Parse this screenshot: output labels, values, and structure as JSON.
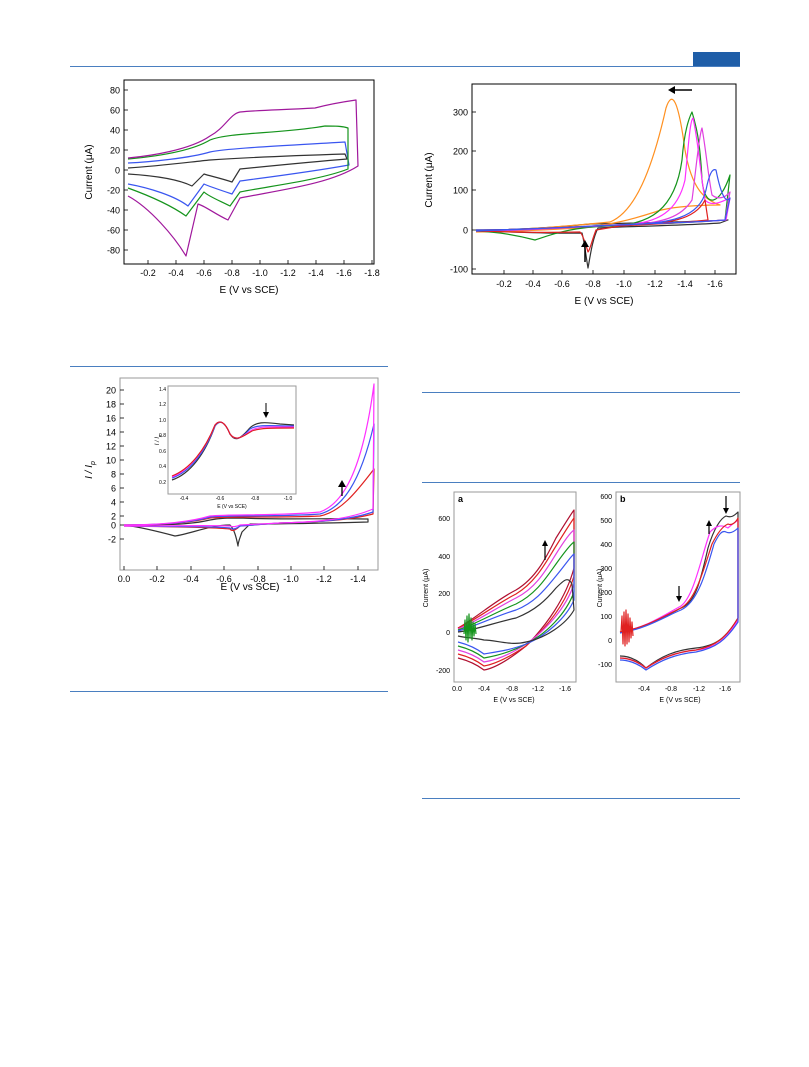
{
  "colors": {
    "rule": "#4a7fc0",
    "header_tab": "#1f5ea8",
    "black": "#333333",
    "blue": "#3a56f0",
    "green": "#15941c",
    "purple": "#a0189c",
    "red": "#e02020",
    "pink": "#e040e0",
    "magenta": "#ff30ff",
    "orange": "#ff9020",
    "darkred": "#b01030"
  },
  "fig1": {
    "xlabel": "E (V vs SCE)",
    "ylabel": "Current (μA)",
    "xticks": [
      "-0.2",
      "-0.4",
      "-0.6",
      "-0.8",
      "-1.0",
      "-1.2",
      "-1.4",
      "-1.6",
      "-1.8"
    ],
    "yticks": [
      "80",
      "60",
      "40",
      "20",
      "0",
      "-20",
      "-40",
      "-60",
      "-80"
    ]
  },
  "fig2": {
    "xlabel": "E (V vs SCE)",
    "ylabel": "Current (μA)",
    "xticks": [
      "-0.2",
      "-0.4",
      "-0.6",
      "-0.8",
      "-1.0",
      "-1.2",
      "-1.4",
      "-1.6"
    ],
    "yticks": [
      "300",
      "200",
      "100",
      "0",
      "-100"
    ]
  },
  "fig3": {
    "xlabel": "E (V vs SCE)",
    "ylabel": "I / I",
    "ylabel_sub": "p",
    "xticks": [
      "0.0",
      "-0.2",
      "-0.4",
      "-0.6",
      "-0.8",
      "-1.0",
      "-1.2",
      "-1.4"
    ],
    "yticks": [
      "20",
      "18",
      "16",
      "14",
      "12",
      "10",
      "8",
      "6",
      "4",
      "2",
      "0",
      "-2"
    ],
    "inset": {
      "xlabel": "E (V vs SCE)",
      "ylabel": "I / I",
      "ylabel_sub": "p",
      "xticks": [
        "-0.4",
        "-0.6",
        "-0.8",
        "-1.0"
      ],
      "yticks": [
        "1.4",
        "1.2",
        "1.0",
        "0.8",
        "0.6",
        "0.4",
        "0.2"
      ]
    }
  },
  "fig4": {
    "panel_a": {
      "letter": "a",
      "xlabel": "E (V vs SCE)",
      "ylabel": "Current (μA)",
      "xticks": [
        "0.0",
        "-0.4",
        "-0.8",
        "-1.2",
        "-1.6"
      ],
      "yticks": [
        "600",
        "400",
        "200",
        "0",
        "-200"
      ]
    },
    "panel_b": {
      "letter": "b",
      "xlabel": "E (V vs SCE)",
      "ylabel": "Current (μA)",
      "xticks": [
        "-0.4",
        "-0.8",
        "-1.2",
        "-1.6"
      ],
      "yticks": [
        "600",
        "500",
        "400",
        "300",
        "200",
        "100",
        "0",
        "-100"
      ]
    }
  }
}
